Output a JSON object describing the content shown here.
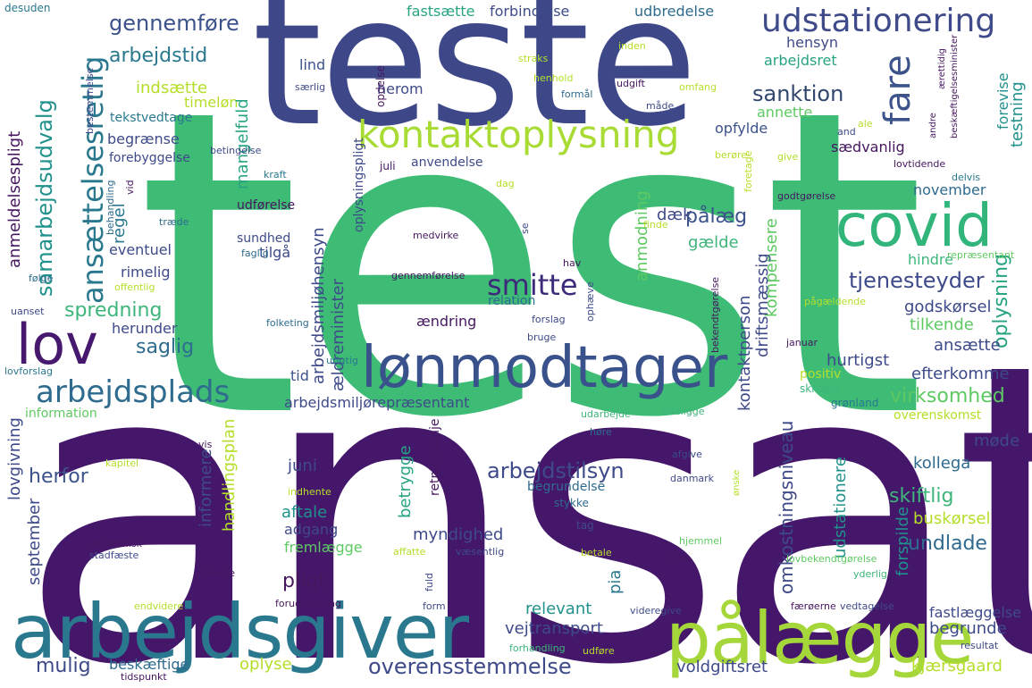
{
  "cloud": {
    "words": [
      {
        "text": "test",
        "color": "#3ebc76"
      },
      {
        "text": "ansat",
        "color": "#45176a"
      },
      {
        "text": "teste",
        "color": "#3e4889"
      },
      {
        "text": "arbejdsgiver",
        "color": "#2a788e"
      },
      {
        "text": "pålægge",
        "color": "#a5d63a"
      },
      {
        "text": "lønmodtager",
        "color": "#3a528b"
      },
      {
        "text": "covid",
        "color": "#31b57b"
      },
      {
        "text": "lov",
        "color": "#47196e"
      },
      {
        "text": "kontaktoplysning",
        "color": "#a8db34"
      },
      {
        "text": "udstationering",
        "color": "#3e4a89"
      },
      {
        "text": "arbejdsplads",
        "color": "#2e6b8e"
      },
      {
        "text": "smitte",
        "color": "#3e2a7a"
      },
      {
        "text": "fare",
        "color": "#3b528b"
      },
      {
        "text": "ansættelsesretlig",
        "color": "#2a788e"
      },
      {
        "text": "samarbejdsudvalg",
        "color": "#21918c"
      },
      {
        "text": "gennemføre",
        "color": "#3b528b"
      },
      {
        "text": "arbejdstid",
        "color": "#2a788e"
      },
      {
        "text": "sanktion",
        "color": "#31476e"
      },
      {
        "text": "arbejdstilsyn",
        "color": "#3e4a89"
      },
      {
        "text": "overensstemmelse",
        "color": "#3e4a89"
      },
      {
        "text": "tjenesteyder",
        "color": "#3e4a89"
      },
      {
        "text": "virksomhed",
        "color": "#5ec962"
      },
      {
        "text": "skiftlig",
        "color": "#3eb57b"
      },
      {
        "text": "undlade",
        "color": "#2e6b8e"
      },
      {
        "text": "pligt",
        "color": "#46175f"
      },
      {
        "text": "spredning",
        "color": "#3eb57b"
      },
      {
        "text": "saglig",
        "color": "#2e6b8e"
      },
      {
        "text": "herfor",
        "color": "#3b528b"
      },
      {
        "text": "mulig",
        "color": "#3e4a89"
      },
      {
        "text": "pålæg",
        "color": "#3b528b"
      },
      {
        "text": "oplysning",
        "color": "#27a383"
      },
      {
        "text": "indsætte",
        "color": "#b5de2b"
      },
      {
        "text": "timeløn",
        "color": "#b5de2b"
      },
      {
        "text": "fastsætte",
        "color": "#27a383"
      },
      {
        "text": "forbindelse",
        "color": "#3e4a89"
      },
      {
        "text": "udbredelse",
        "color": "#2e6b8e"
      },
      {
        "text": "hensyn",
        "color": "#3e4a89"
      },
      {
        "text": "arbejdsret",
        "color": "#27a383"
      },
      {
        "text": "lind",
        "color": "#3b528b"
      },
      {
        "text": "herom",
        "color": "#3e4a89"
      },
      {
        "text": "annette",
        "color": "#5ec962"
      },
      {
        "text": "opfylde",
        "color": "#3b528b"
      },
      {
        "text": "sædvanlig",
        "color": "#46175f"
      },
      {
        "text": "november",
        "color": "#2e6b8e"
      },
      {
        "text": "begrænse",
        "color": "#3e4a89"
      },
      {
        "text": "forebyggelse",
        "color": "#3e4a89"
      },
      {
        "text": "tekstvedtage",
        "color": "#2a788e"
      },
      {
        "text": "regel",
        "color": "#2a788e"
      },
      {
        "text": "eventuel",
        "color": "#3e4a89"
      },
      {
        "text": "rimelig",
        "color": "#3e4a89"
      },
      {
        "text": "tilgå",
        "color": "#3e4a89"
      },
      {
        "text": "herunder",
        "color": "#3e4a89"
      },
      {
        "text": "tid",
        "color": "#3b528b"
      },
      {
        "text": "arbejdsmiljørepræsentant",
        "color": "#3e4a89"
      },
      {
        "text": "juni",
        "color": "#3e4a89"
      },
      {
        "text": "aftale",
        "color": "#21918c"
      },
      {
        "text": "adgang",
        "color": "#3e4a89"
      },
      {
        "text": "fremlægge",
        "color": "#5ec962"
      },
      {
        "text": "myndighed",
        "color": "#3e4a89"
      },
      {
        "text": "relevant",
        "color": "#21918c"
      },
      {
        "text": "vejtransport",
        "color": "#3e4a89"
      },
      {
        "text": "beskæftige",
        "color": "#2e6b8e"
      },
      {
        "text": "oplyse",
        "color": "#b5de2b"
      },
      {
        "text": "voldgiftsret",
        "color": "#3e4a89"
      },
      {
        "text": "kjærsgaard",
        "color": "#b5de2b"
      },
      {
        "text": "begrunde",
        "color": "#3e4a89"
      },
      {
        "text": "fastlæggelse",
        "color": "#3e4a89"
      },
      {
        "text": "buskørsel",
        "color": "#b5de2b"
      },
      {
        "text": "kollega",
        "color": "#2e6b8e"
      },
      {
        "text": "møde",
        "color": "#3e4a89"
      },
      {
        "text": "efterkomme",
        "color": "#3e4a89"
      },
      {
        "text": "hurtigst",
        "color": "#3e4a89"
      },
      {
        "text": "ansætte",
        "color": "#3e4a89"
      },
      {
        "text": "tilkende",
        "color": "#5ec962"
      },
      {
        "text": "godskørsel",
        "color": "#3e4a89"
      },
      {
        "text": "hindre",
        "color": "#3eb57b"
      },
      {
        "text": "gælde",
        "color": "#3eb57b"
      },
      {
        "text": "dæk",
        "color": "#3e4a89"
      },
      {
        "text": "udførelse",
        "color": "#46175f"
      },
      {
        "text": "sundhed",
        "color": "#3e4a89"
      },
      {
        "text": "ændring",
        "color": "#46175f"
      },
      {
        "text": "relation",
        "color": "#2e6b8e"
      },
      {
        "text": "overenskomst",
        "color": "#b5de2b"
      },
      {
        "text": "information",
        "color": "#5ec962"
      },
      {
        "text": "positiv",
        "color": "#b5de2b"
      },
      {
        "text": "skriftlig",
        "color": "#3eb57b"
      },
      {
        "text": "grønland",
        "color": "#2a788e"
      },
      {
        "text": "mangelfuld",
        "color": "#27a383"
      },
      {
        "text": "anmeldelsespligt",
        "color": "#46175f"
      },
      {
        "text": "lovgivning",
        "color": "#3e4a89"
      },
      {
        "text": "september",
        "color": "#3e4a89"
      },
      {
        "text": "informere",
        "color": "#3e4a89"
      },
      {
        "text": "handlingsplan",
        "color": "#b5de2b"
      },
      {
        "text": "arbejdsmiljøhensyn",
        "color": "#3e4a89"
      },
      {
        "text": "ældreminister",
        "color": "#3e4a89"
      },
      {
        "text": "anmodning",
        "color": "#5ec962"
      },
      {
        "text": "kontaktperson",
        "color": "#3e4a89"
      },
      {
        "text": "kompensere",
        "color": "#5ec962"
      },
      {
        "text": "driftsmæssig",
        "color": "#3e4a89"
      },
      {
        "text": "omkostningsniveau",
        "color": "#3e4a89"
      },
      {
        "text": "udstationere",
        "color": "#21918c"
      },
      {
        "text": "forspilde",
        "color": "#21918c"
      },
      {
        "text": "testning",
        "color": "#21918c"
      },
      {
        "text": "forevise",
        "color": "#21918c"
      },
      {
        "text": "betrygge",
        "color": "#27a383"
      },
      {
        "text": "retningslinje",
        "color": "#46175f"
      },
      {
        "text": "pia",
        "color": "#2a788e"
      },
      {
        "text": "begrundelse",
        "color": "#2e6b8e"
      },
      {
        "text": "stykke",
        "color": "#2e6b8e"
      },
      {
        "text": "tag",
        "color": "#3e4a89"
      },
      {
        "text": "oplysningspligt",
        "color": "#3e4a89"
      },
      {
        "text": "opdelse",
        "color": "#46175f"
      },
      {
        "text": "desuden",
        "color": "#2a788e"
      },
      {
        "text": "bestemmelse",
        "color": "#3e4a89"
      },
      {
        "text": "betingelse",
        "color": "#3e4a89"
      },
      {
        "text": "kraft",
        "color": "#2a788e"
      },
      {
        "text": "juli",
        "color": "#46175f"
      },
      {
        "text": "anvendelse",
        "color": "#3e4a89"
      },
      {
        "text": "dag",
        "color": "#b5de2b"
      },
      {
        "text": "berøre",
        "color": "#b5de2b"
      },
      {
        "text": "give",
        "color": "#b5de2b"
      },
      {
        "text": "and",
        "color": "#3e4a89"
      },
      {
        "text": "lovtidende",
        "color": "#46175f"
      },
      {
        "text": "delvis",
        "color": "#2a788e"
      },
      {
        "text": "godtgørelse",
        "color": "#46175f"
      },
      {
        "text": "foretage",
        "color": "#b5de2b"
      },
      {
        "text": "finde",
        "color": "#b5de2b"
      },
      {
        "text": "repræsentant",
        "color": "#5ec962"
      },
      {
        "text": "pågældende",
        "color": "#b5de2b"
      },
      {
        "text": "januar",
        "color": "#46175f"
      },
      {
        "text": "bekendtgørelse",
        "color": "#46175f"
      },
      {
        "text": "udarbejde",
        "color": "#3eb57b"
      },
      {
        "text": "foreligge",
        "color": "#3eb57b"
      },
      {
        "text": "høre",
        "color": "#2e6b8e"
      },
      {
        "text": "afgive",
        "color": "#3e4a89"
      },
      {
        "text": "danmark",
        "color": "#3e4a89"
      },
      {
        "text": "ønske",
        "color": "#b5de2b"
      },
      {
        "text": "hjemmel",
        "color": "#5ec962"
      },
      {
        "text": "unde",
        "color": "#46175f"
      },
      {
        "text": "lovbekendtgørelse",
        "color": "#5ec962"
      },
      {
        "text": "yderlig",
        "color": "#3eb57b"
      },
      {
        "text": "vedtagelse",
        "color": "#3e4a89"
      },
      {
        "text": "færøerne",
        "color": "#46175f"
      },
      {
        "text": "resultat",
        "color": "#3e4a89"
      },
      {
        "text": "videregive",
        "color": "#3e4a89"
      },
      {
        "text": "udføre",
        "color": "#b5de2b"
      },
      {
        "text": "forhandling",
        "color": "#3eb57b"
      },
      {
        "text": "form",
        "color": "#3e4a89"
      },
      {
        "text": "fuld",
        "color": "#3e4a89"
      },
      {
        "text": "forudsætning",
        "color": "#46175f"
      },
      {
        "text": "endvidere",
        "color": "#b5de2b"
      },
      {
        "text": "tidspunkt",
        "color": "#46175f"
      },
      {
        "text": "økonomisk",
        "color": "#46175f"
      },
      {
        "text": "stadfæste",
        "color": "#3e4a89"
      },
      {
        "text": "nævne",
        "color": "#46175f"
      },
      {
        "text": "affatte",
        "color": "#b5de2b"
      },
      {
        "text": "væsentlig",
        "color": "#3e4a89"
      },
      {
        "text": "betale",
        "color": "#b5de2b"
      },
      {
        "text": "indhente",
        "color": "#b5de2b"
      },
      {
        "text": "kapitel",
        "color": "#b5de2b"
      },
      {
        "text": "vis",
        "color": "#46175f"
      },
      {
        "text": "lovforslag",
        "color": "#2a788e"
      },
      {
        "text": "urigtig",
        "color": "#2a788e"
      },
      {
        "text": "bruge",
        "color": "#3e4a89"
      },
      {
        "text": "forslag",
        "color": "#3e4a89"
      },
      {
        "text": "folketing",
        "color": "#2e6b8e"
      },
      {
        "text": "uanset",
        "color": "#3e4a89"
      },
      {
        "text": "offentlig",
        "color": "#b5de2b"
      },
      {
        "text": "følge",
        "color": "#2e6b8e"
      },
      {
        "text": "faglig",
        "color": "#2e6b8e"
      },
      {
        "text": "træde",
        "color": "#2e6b8e"
      },
      {
        "text": "behandling",
        "color": "#2e6b8e"
      },
      {
        "text": "vid",
        "color": "#46175f"
      },
      {
        "text": "medvirke",
        "color": "#46175f"
      },
      {
        "text": "gennemførelse",
        "color": "#46175f"
      },
      {
        "text": "hav",
        "color": "#46175f"
      },
      {
        "text": "ophæve",
        "color": "#3e4a89"
      },
      {
        "text": "se",
        "color": "#3e4a89"
      },
      {
        "text": "straks",
        "color": "#b5de2b"
      },
      {
        "text": "henhold",
        "color": "#b5de2b"
      },
      {
        "text": "formål",
        "color": "#2e6b8e"
      },
      {
        "text": "inden",
        "color": "#b5de2b"
      },
      {
        "text": "afholde",
        "color": "#3e4a89"
      },
      {
        "text": "udgift",
        "color": "#46175f"
      },
      {
        "text": "omfang",
        "color": "#b5de2b"
      },
      {
        "text": "måde",
        "color": "#3e4a89"
      },
      {
        "text": "ale",
        "color": "#b5de2b"
      },
      {
        "text": "anmelde",
        "color": "#3e4a89"
      },
      {
        "text": "andre",
        "color": "#46175f"
      },
      {
        "text": "ærettidig",
        "color": "#46175f"
      },
      {
        "text": "beskæftigelsesminister",
        "color": "#46175f"
      },
      {
        "text": "særlig",
        "color": "#3e4a89"
      }
    ]
  }
}
